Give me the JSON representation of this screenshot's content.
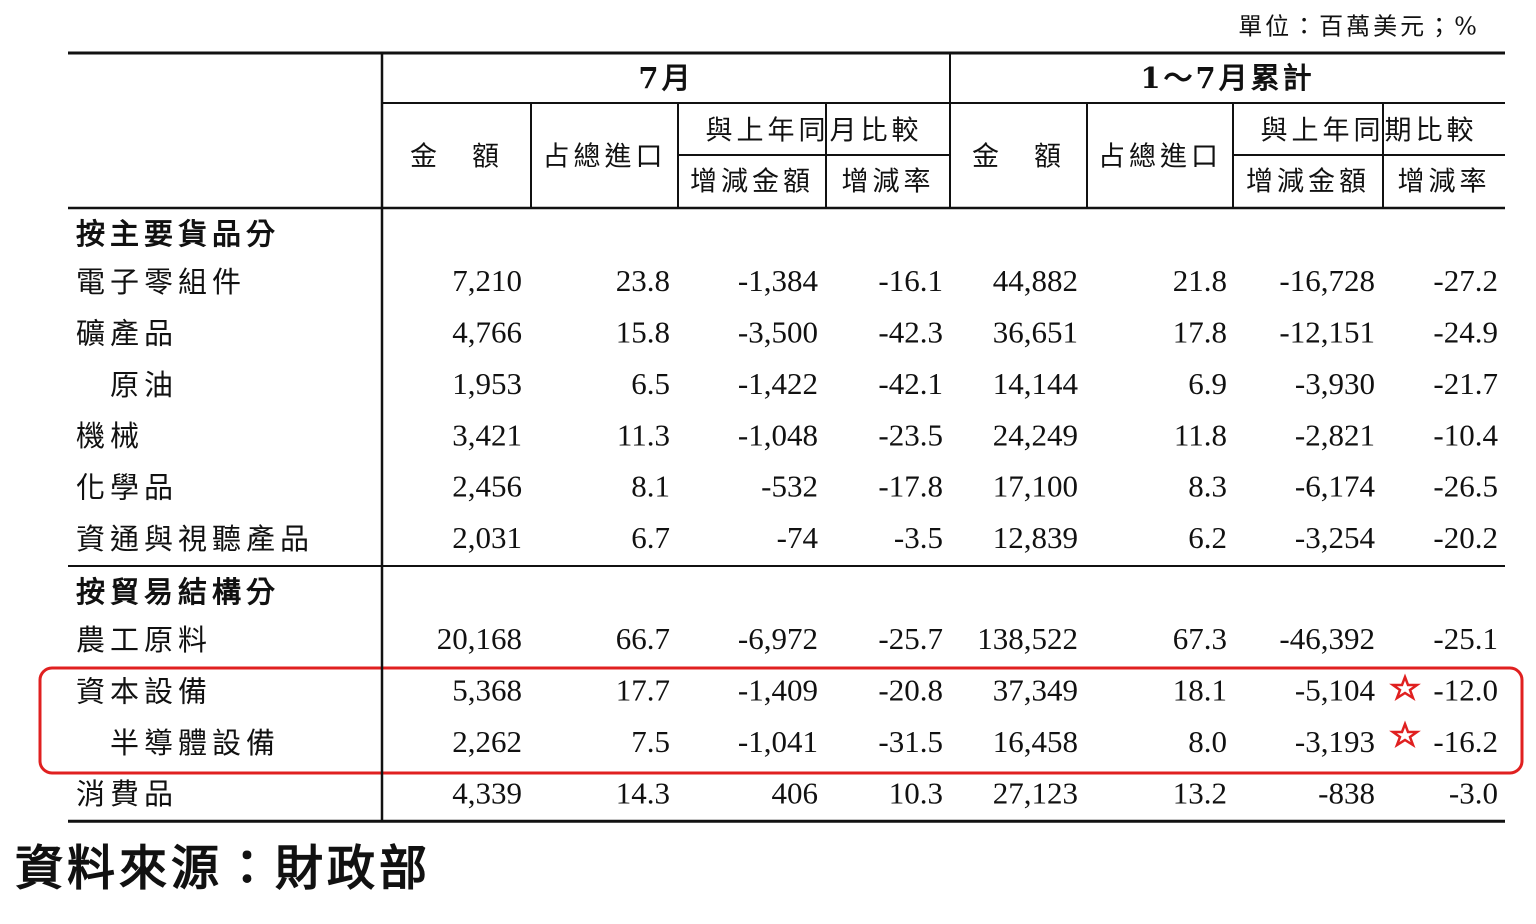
{
  "unit": "單位：百萬美元；%",
  "header": {
    "groups": [
      {
        "title": "7月",
        "columns": [
          "金　額",
          "占總進口"
        ],
        "comparison": {
          "title": "與上年同月比較",
          "columns": [
            "增減金額",
            "增減率"
          ]
        }
      },
      {
        "title": "1～7月累計",
        "columns": [
          "金　額",
          "占總進口"
        ],
        "comparison": {
          "title": "與上年同期比較",
          "columns": [
            "增減金額",
            "增減率"
          ]
        }
      }
    ]
  },
  "sections": [
    {
      "title": "按主要貨品分",
      "rows": [
        {
          "label": "電子零組件",
          "values": [
            "7,210",
            "23.8",
            "-1,384",
            "-16.1",
            "44,882",
            "21.8",
            "-16,728",
            "-27.2"
          ]
        },
        {
          "label": "礦產品",
          "values": [
            "4,766",
            "15.8",
            "-3,500",
            "-42.3",
            "36,651",
            "17.8",
            "-12,151",
            "-24.9"
          ]
        },
        {
          "label": "原油",
          "values": [
            "1,953",
            "6.5",
            "-1,422",
            "-42.1",
            "14,144",
            "6.9",
            "-3,930",
            "-21.7"
          ]
        },
        {
          "label": "機械",
          "values": [
            "3,421",
            "11.3",
            "-1,048",
            "-23.5",
            "24,249",
            "11.8",
            "-2,821",
            "-10.4"
          ]
        },
        {
          "label": "化學品",
          "values": [
            "2,456",
            "8.1",
            "-532",
            "-17.8",
            "17,100",
            "8.3",
            "-6,174",
            "-26.5"
          ]
        },
        {
          "label": "資通與視聽產品",
          "values": [
            "2,031",
            "6.7",
            "-74",
            "-3.5",
            "12,839",
            "6.2",
            "-3,254",
            "-20.2"
          ]
        }
      ]
    },
    {
      "title": "按貿易結構分",
      "rows": [
        {
          "label": "農工原料",
          "values": [
            "20,168",
            "66.7",
            "-6,972",
            "-25.7",
            "138,522",
            "67.3",
            "-46,392",
            "-25.1"
          ]
        },
        {
          "label": "資本設備",
          "values": [
            "5,368",
            "17.7",
            "-1,409",
            "-20.8",
            "37,349",
            "18.1",
            "-5,104",
            "-12.0"
          ]
        },
        {
          "label": "半導體設備",
          "values": [
            "2,262",
            "7.5",
            "-1,041",
            "-31.5",
            "16,458",
            "8.0",
            "-3,193",
            "-16.2"
          ]
        },
        {
          "label": "消費品",
          "values": [
            "4,339",
            "14.3",
            "406",
            "10.3",
            "27,123",
            "13.2",
            "-838",
            "-3.0"
          ]
        }
      ]
    }
  ],
  "source": "資料來源：財政部"
}
